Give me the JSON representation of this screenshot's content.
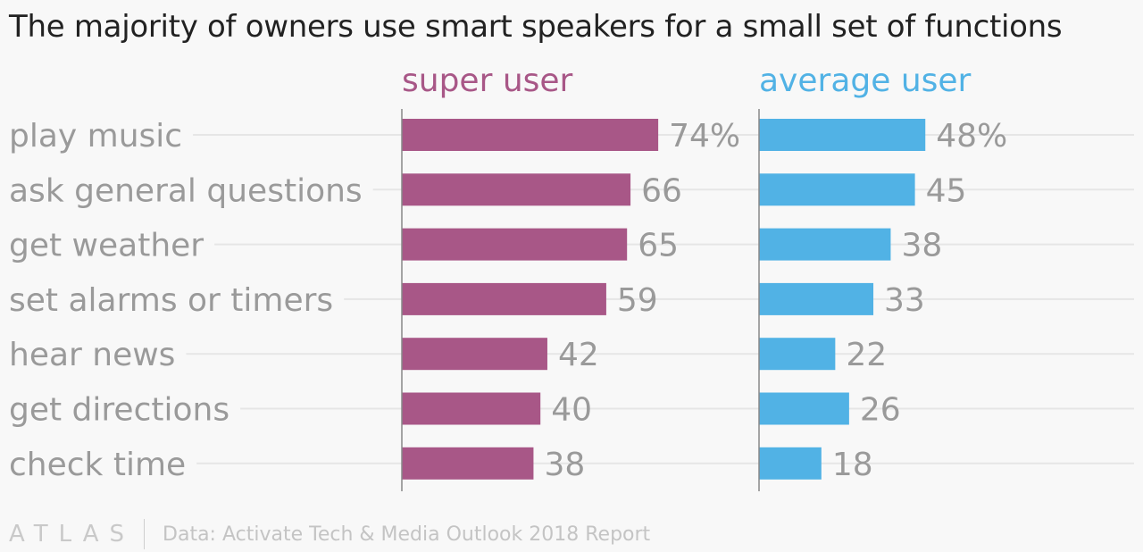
{
  "title": "The majority of owners use smart speakers for a small set of functions",
  "footer": {
    "logo": "ATLAS",
    "source": "Data: Activate Tech & Media Outlook 2018 Report"
  },
  "colors": {
    "super_user": "#a85787",
    "average_user": "#51b2e5",
    "label_text": "#9a9a9a",
    "gridline": "#e6e6e6",
    "axis": "#888888"
  },
  "chart_data": {
    "type": "bar",
    "orientation": "horizontal",
    "title": "The majority of owners use smart speakers for a small set of functions",
    "categories": [
      "play music",
      "ask general questions",
      "get weather",
      "set alarms or timers",
      "hear news",
      "get directions",
      "check time"
    ],
    "series": [
      {
        "name": "super user",
        "values": [
          74,
          66,
          65,
          59,
          42,
          40,
          38
        ],
        "labels": [
          "74%",
          "66",
          "65",
          "59",
          "42",
          "40",
          "38"
        ],
        "color": "#a85787"
      },
      {
        "name": "average user",
        "values": [
          48,
          45,
          38,
          33,
          22,
          26,
          18
        ],
        "labels": [
          "48%",
          "45",
          "38",
          "33",
          "22",
          "26",
          "18"
        ],
        "color": "#51b2e5"
      }
    ],
    "unit": "%",
    "xlim": [
      0,
      100
    ],
    "grid": true,
    "legend": "panel titles above each panel"
  }
}
